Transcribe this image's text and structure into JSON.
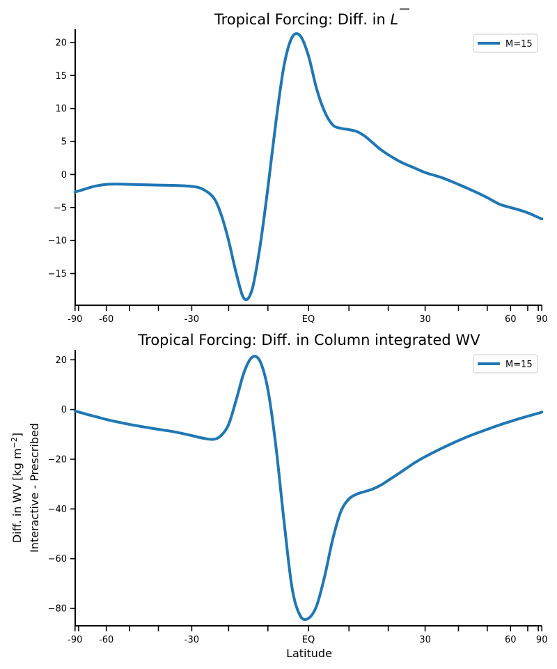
{
  "chart_data": [
    {
      "type": "line",
      "title": "Tropical Forcing: Diff. in ",
      "title_symbol": "L",
      "xlabel": "",
      "ylabel": "",
      "x_scale": "sin(latitude)",
      "xlim": [
        -92,
        92
      ],
      "ylim": [
        -19.8,
        22
      ],
      "x_ticks": [
        -90,
        -60,
        -30,
        0,
        30,
        60,
        90
      ],
      "x_tick_labels": [
        "-90",
        "-60",
        "-30",
        "EQ",
        "30",
        "60",
        "90"
      ],
      "x_minor_ticks": [
        -80,
        -50,
        -40,
        -20,
        -10,
        10,
        20,
        40,
        50,
        70,
        80
      ],
      "y_ticks": [
        -15,
        -10,
        -5,
        0,
        5,
        10,
        15,
        20
      ],
      "y_tick_labels": [
        "−15",
        "−10",
        "−5",
        "0",
        "5",
        "10",
        "15",
        "20"
      ],
      "legend_position": "top-right",
      "series": [
        {
          "name": "M=15",
          "color": "#1f77b4",
          "x": [
            -90,
            -85,
            -80,
            -75,
            -70,
            -65,
            -60,
            -55,
            -50,
            -45,
            -40,
            -35,
            -30,
            -27,
            -24,
            -22,
            -20,
            -18,
            -16,
            -14,
            -12,
            -10,
            -8,
            -6,
            -4,
            -2,
            0,
            2,
            4,
            6,
            8,
            10,
            12,
            14,
            16,
            18,
            20,
            22,
            24,
            27,
            30,
            35,
            40,
            45,
            50,
            55,
            60,
            65,
            70,
            75,
            80,
            85,
            90
          ],
          "y": [
            -2.7,
            -2.6,
            -2.5,
            -2.3,
            -2.0,
            -1.7,
            -1.5,
            -1.45,
            -1.5,
            -1.55,
            -1.6,
            -1.65,
            -1.8,
            -2.2,
            -3.5,
            -6.0,
            -10.0,
            -15.0,
            -18.8,
            -17.5,
            -11.0,
            -2.0,
            8.0,
            16.5,
            20.8,
            21.0,
            18.0,
            13.0,
            9.5,
            7.5,
            7.0,
            6.8,
            6.5,
            5.8,
            4.8,
            3.8,
            3.0,
            2.3,
            1.7,
            1.0,
            0.3,
            -0.5,
            -1.5,
            -2.5,
            -3.5,
            -4.5,
            -5.0,
            -5.4,
            -5.8,
            -6.2,
            -6.5,
            -6.7,
            -6.7
          ]
        }
      ]
    },
    {
      "type": "line",
      "title": "Tropical Forcing: Diff. in Column integrated WV",
      "xlabel": "Latitude",
      "ylabel_line1": "Diff. in WV [kg m",
      "ylabel_sup": "−2",
      "ylabel_line1_end": "]",
      "ylabel_line2": "Interactive - Prescribed",
      "x_scale": "sin(latitude)",
      "xlim": [
        -92,
        92
      ],
      "ylim": [
        -87,
        24
      ],
      "x_ticks": [
        -90,
        -60,
        -30,
        0,
        30,
        60,
        90
      ],
      "x_tick_labels": [
        "-90",
        "-60",
        "-30",
        "EQ",
        "30",
        "60",
        "90"
      ],
      "x_minor_ticks": [
        -80,
        -50,
        -40,
        -20,
        -10,
        10,
        20,
        40,
        50,
        70,
        80
      ],
      "y_ticks": [
        -80,
        -60,
        -40,
        -20,
        0,
        20
      ],
      "y_tick_labels": [
        "−80",
        "−60",
        "−40",
        "−20",
        "0",
        "20"
      ],
      "legend_position": "top-right",
      "series": [
        {
          "name": "M=15",
          "color": "#1f77b4",
          "x": [
            -90,
            -85,
            -80,
            -75,
            -70,
            -65,
            -60,
            -55,
            -50,
            -45,
            -40,
            -35,
            -30,
            -27,
            -24,
            -22,
            -20,
            -18,
            -16,
            -14,
            -12,
            -10,
            -8,
            -6,
            -4,
            -2,
            0,
            2,
            4,
            6,
            8,
            10,
            12,
            14,
            16,
            18,
            20,
            22,
            24,
            27,
            30,
            35,
            40,
            45,
            50,
            55,
            60,
            65,
            70,
            75,
            80,
            85,
            90
          ],
          "y": [
            -0.5,
            -0.7,
            -1.0,
            -1.5,
            -2.2,
            -3.0,
            -4.0,
            -5.0,
            -6.0,
            -7.0,
            -8.0,
            -9.0,
            -10.5,
            -11.5,
            -12.0,
            -10.5,
            -6.0,
            4.0,
            15.0,
            21.0,
            19.5,
            8.0,
            -15.0,
            -45.0,
            -72.0,
            -83.0,
            -84.0,
            -79.0,
            -67.0,
            -52.0,
            -41.0,
            -36.0,
            -34.0,
            -33.0,
            -32.0,
            -30.5,
            -28.5,
            -26.5,
            -24.5,
            -21.5,
            -19.0,
            -15.5,
            -12.5,
            -10.0,
            -8.0,
            -6.2,
            -4.8,
            -3.6,
            -2.7,
            -2.0,
            -1.5,
            -1.2,
            -1.0
          ]
        }
      ]
    }
  ]
}
